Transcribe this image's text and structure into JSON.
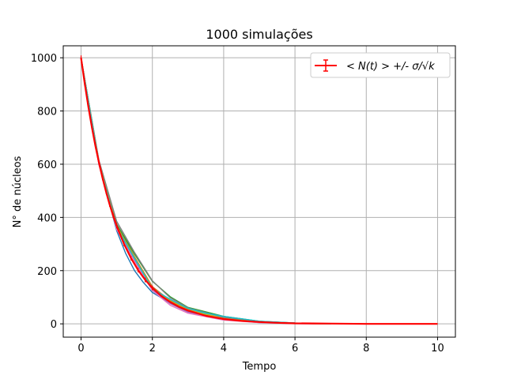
{
  "chart_data": {
    "type": "line",
    "title": "1000 simulações",
    "xlabel": "Tempo",
    "ylabel": "N° de núcleos",
    "xlim": [
      -0.5,
      10.5
    ],
    "ylim": [
      -50,
      1045
    ],
    "xticks": [
      0,
      2,
      4,
      6,
      8,
      10
    ],
    "yticks": [
      0,
      200,
      400,
      600,
      800,
      1000
    ],
    "grid": true,
    "legend": {
      "position": "top-right",
      "entries": [
        "< N(t) >  +/- σ/√k"
      ]
    },
    "mean_series": {
      "name": "< N(t) >  +/- σ/√k",
      "color": "#ff0000",
      "x": [
        0,
        0.1,
        0.2,
        0.3,
        0.4,
        0.5,
        0.6,
        0.7,
        0.8,
        0.9,
        1.0,
        1.2,
        1.4,
        1.6,
        1.8,
        2.0,
        2.25,
        2.5,
        2.75,
        3.0,
        3.5,
        4.0,
        4.5,
        5.0,
        5.5,
        6.0,
        6.5,
        7.0,
        8.0,
        9.0,
        10.0
      ],
      "y": [
        1000,
        905,
        819,
        741,
        670,
        607,
        549,
        497,
        449,
        407,
        368,
        301,
        247,
        202,
        165,
        135,
        105,
        82,
        64,
        50,
        30,
        18,
        11,
        7,
        4,
        2,
        1.5,
        1,
        0,
        0,
        0
      ]
    },
    "simulation_series": [
      {
        "color": "#1f77b4",
        "x": [
          0,
          0.5,
          1.0,
          1.25,
          1.5,
          1.75,
          2.0,
          2.5,
          3.0,
          4.0,
          5.0,
          6.0,
          7.0
        ],
        "y": [
          1000,
          600,
          350,
          265,
          200,
          155,
          118,
          78,
          48,
          18,
          6,
          2,
          0
        ]
      },
      {
        "color": "#ff7f0e",
        "x": [
          0,
          0.5,
          1.0,
          1.5,
          2.0,
          2.5,
          3.0,
          4.0,
          5.0,
          6.0,
          7.0
        ],
        "y": [
          1000,
          608,
          372,
          252,
          140,
          88,
          55,
          20,
          7,
          2,
          0
        ]
      },
      {
        "color": "#2ca02c",
        "x": [
          0,
          0.5,
          1.0,
          1.5,
          2.0,
          2.5,
          3.0,
          4.0,
          5.0,
          6.0,
          7.0
        ],
        "y": [
          1000,
          612,
          375,
          262,
          160,
          102,
          62,
          28,
          10,
          3,
          0
        ]
      },
      {
        "color": "#d62728",
        "x": [
          0,
          0.5,
          1.0,
          1.5,
          2.0,
          2.5,
          3.0,
          4.0,
          5.0,
          6.0,
          7.0
        ],
        "y": [
          1000,
          605,
          366,
          246,
          134,
          80,
          48,
          17,
          6,
          2,
          0
        ]
      },
      {
        "color": "#9467bd",
        "x": [
          0,
          0.5,
          1.0,
          1.5,
          2.0,
          2.5,
          3.0,
          4.0,
          5.0,
          6.0,
          7.0
        ],
        "y": [
          1000,
          602,
          360,
          240,
          128,
          76,
          44,
          16,
          5,
          1,
          0
        ]
      },
      {
        "color": "#8c564b",
        "x": [
          0,
          0.5,
          1.0,
          1.5,
          2.0,
          2.5,
          3.0,
          4.0,
          5.0,
          6.0,
          7.0
        ],
        "y": [
          1000,
          610,
          370,
          250,
          138,
          84,
          50,
          19,
          7,
          2,
          0
        ]
      },
      {
        "color": "#e377c2",
        "x": [
          0,
          0.5,
          1.0,
          1.5,
          2.0,
          2.5,
          3.0,
          4.0,
          5.0,
          6.0,
          7.0
        ],
        "y": [
          1000,
          598,
          355,
          235,
          125,
          70,
          40,
          14,
          5,
          1,
          0
        ]
      },
      {
        "color": "#7f7f7f",
        "x": [
          0,
          0.5,
          1.0,
          1.5,
          2.0,
          2.5,
          3.0,
          4.0,
          5.0,
          6.0,
          7.0
        ],
        "y": [
          1000,
          615,
          385,
          268,
          162,
          98,
          60,
          24,
          9,
          3,
          0
        ]
      },
      {
        "color": "#bcbd22",
        "x": [
          0,
          0.5,
          1.0,
          1.5,
          2.0,
          2.5,
          3.0,
          4.0,
          5.0,
          6.0,
          7.0
        ],
        "y": [
          1000,
          606,
          368,
          248,
          136,
          86,
          52,
          20,
          7,
          2,
          0
        ]
      },
      {
        "color": "#17becf",
        "x": [
          0,
          0.5,
          1.0,
          1.5,
          2.0,
          2.5,
          3.0,
          3.5,
          4.0,
          5.0,
          6.0,
          7.0
        ],
        "y": [
          1000,
          603,
          363,
          245,
          132,
          92,
          58,
          40,
          28,
          10,
          3,
          0
        ]
      }
    ]
  }
}
